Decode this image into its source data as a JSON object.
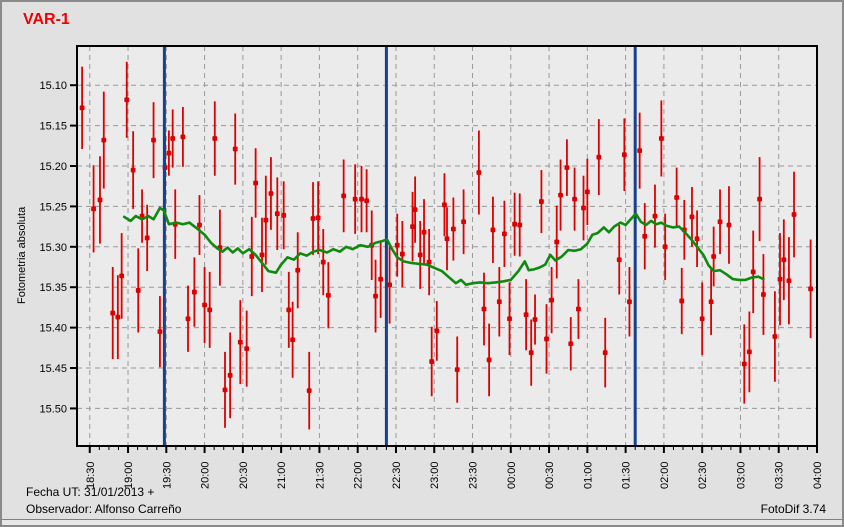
{
  "window_title": "VAR-1",
  "status": {
    "fecha": "Fecha UT: 31/01/2013 +",
    "observador": "Observador: Alfonso Carreño",
    "version": "FotoDif 3.74"
  },
  "chart_data": {
    "type": "scatter",
    "title": "VAR-1",
    "xlabel": "",
    "ylabel": "Fotometria absoluta",
    "y_inverted": true,
    "ylim": [
      15.0515,
      15.5465
    ],
    "y_ticks": [
      "15.10",
      "15.15",
      "15.20",
      "15.25",
      "15.30",
      "15.35",
      "15.40",
      "15.45",
      "15.50"
    ],
    "y_tick_values": [
      15.1,
      15.15,
      15.2,
      15.25,
      15.3,
      15.35,
      15.4,
      15.45,
      15.5
    ],
    "x_ticks": [
      "18:30",
      "19:00",
      "19:30",
      "20:00",
      "20:30",
      "21:00",
      "21:30",
      "22:00",
      "22:30",
      "23:00",
      "23:30",
      "00:00",
      "00:30",
      "01:00",
      "01:30",
      "02:00",
      "02:30",
      "03:00",
      "03:30",
      "04:00"
    ],
    "x_tick_minutes": [
      0,
      30,
      60,
      90,
      120,
      150,
      180,
      210,
      240,
      270,
      300,
      330,
      360,
      390,
      420,
      450,
      480,
      510,
      540,
      570
    ],
    "x_range_minutes": [
      -10,
      570
    ],
    "minor_tick_step_minutes": 7.5,
    "grid": "dashed",
    "legend": "none",
    "vertical_markers_minutes": [
      58.5,
      232.5,
      427.5
    ],
    "vertical_marker_times": [
      "19:29",
      "22:23",
      "01:38"
    ],
    "colors": {
      "points": "#dd0000",
      "smoothed_line": "#0f8a0f",
      "vertical_marker": "#16418e",
      "grid": "#999999",
      "axis": "#000000",
      "plot_bg": "#ebebeb",
      "window_bg": "#e1e1e1",
      "title": "#f00000",
      "text": "#000000"
    },
    "series": [
      {
        "name": "observations",
        "style": "points_with_errorbars",
        "format": "[minutes_after_18:30, magnitude, error]",
        "points": [
          [
            -6,
            15.128,
            0.051
          ],
          [
            3,
            15.253,
            0.054
          ],
          [
            8,
            15.242,
            0.054
          ],
          [
            11,
            15.168,
            0.06
          ],
          [
            18,
            15.382,
            0.057
          ],
          [
            22,
            15.387,
            0.052
          ],
          [
            25,
            15.336,
            0.053
          ],
          [
            29,
            15.118,
            0.047
          ],
          [
            34,
            15.205,
            0.048
          ],
          [
            38,
            15.354,
            0.052
          ],
          [
            41,
            15.262,
            0.033
          ],
          [
            45,
            15.289,
            0.041
          ],
          [
            50,
            15.168,
            0.047
          ],
          [
            55,
            15.405,
            0.044
          ],
          [
            59,
            15.202,
            0.041
          ],
          [
            62,
            15.184,
            0.028
          ],
          [
            65,
            15.166,
            0.036
          ],
          [
            67,
            15.272,
            0.043
          ],
          [
            73,
            15.164,
            0.037
          ],
          [
            77,
            15.389,
            0.041
          ],
          [
            82,
            15.356,
            0.043
          ],
          [
            86,
            15.273,
            0.037
          ],
          [
            90,
            15.372,
            0.047
          ],
          [
            94,
            15.378,
            0.047
          ],
          [
            98,
            15.166,
            0.046
          ],
          [
            102,
            15.301,
            0.047
          ],
          [
            106,
            15.477,
            0.047
          ],
          [
            110,
            15.459,
            0.053
          ],
          [
            114,
            15.179,
            0.044
          ],
          [
            118,
            15.418,
            0.052
          ],
          [
            123,
            15.426,
            0.047
          ],
          [
            127,
            15.312,
            0.049
          ],
          [
            130,
            15.221,
            0.043
          ],
          [
            135,
            15.31,
            0.046
          ],
          [
            138,
            15.267,
            0.055
          ],
          [
            142,
            15.234,
            0.045
          ],
          [
            147,
            15.259,
            0.045
          ],
          [
            152,
            15.261,
            0.042
          ],
          [
            156,
            15.378,
            0.047
          ],
          [
            159,
            15.415,
            0.047
          ],
          [
            163,
            15.329,
            0.047
          ],
          [
            172,
            15.478,
            0.048
          ],
          [
            175,
            15.265,
            0.045
          ],
          [
            179,
            15.264,
            0.045
          ],
          [
            183,
            15.319,
            0.041
          ],
          [
            187,
            15.36,
            0.041
          ],
          [
            199,
            15.237,
            0.045
          ],
          [
            208,
            15.241,
            0.043
          ],
          [
            213,
            15.241,
            0.041
          ],
          [
            217,
            15.243,
            0.039
          ],
          [
            221,
            15.298,
            0.043
          ],
          [
            224,
            15.361,
            0.045
          ],
          [
            228,
            15.34,
            0.048
          ],
          [
            235,
            15.347,
            0.048
          ],
          [
            241,
            15.298,
            0.039
          ],
          [
            245,
            15.309,
            0.041
          ],
          [
            253,
            15.275,
            0.043
          ],
          [
            255,
            15.254,
            0.041
          ],
          [
            259,
            15.31,
            0.042
          ],
          [
            262,
            15.282,
            0.041
          ],
          [
            266,
            15.319,
            0.041
          ],
          [
            268,
            15.442,
            0.043
          ],
          [
            272,
            15.404,
            0.037
          ],
          [
            278,
            15.248,
            0.039
          ],
          [
            280,
            15.29,
            0.039
          ],
          [
            285,
            15.278,
            0.039
          ],
          [
            288,
            15.452,
            0.041
          ],
          [
            293,
            15.269,
            0.04
          ],
          [
            305,
            15.208,
            0.052
          ],
          [
            309,
            15.377,
            0.045
          ],
          [
            313,
            15.44,
            0.045
          ],
          [
            316,
            15.279,
            0.041
          ],
          [
            321,
            15.368,
            0.043
          ],
          [
            325,
            15.284,
            0.041
          ],
          [
            329,
            15.389,
            0.045
          ],
          [
            333,
            15.272,
            0.039
          ],
          [
            337,
            15.273,
            0.039
          ],
          [
            342,
            15.384,
            0.044
          ],
          [
            346,
            15.431,
            0.041
          ],
          [
            349,
            15.39,
            0.031
          ],
          [
            354,
            15.244,
            0.039
          ],
          [
            358,
            15.414,
            0.043
          ],
          [
            362,
            15.366,
            0.041
          ],
          [
            366,
            15.294,
            0.045
          ],
          [
            369,
            15.236,
            0.044
          ],
          [
            374,
            15.202,
            0.035
          ],
          [
            377,
            15.42,
            0.033
          ],
          [
            380,
            15.241,
            0.039
          ],
          [
            383,
            15.377,
            0.037
          ],
          [
            387,
            15.252,
            0.04
          ],
          [
            390,
            15.232,
            0.041
          ],
          [
            399,
            15.189,
            0.047
          ],
          [
            404,
            15.431,
            0.043
          ],
          [
            415,
            15.316,
            0.043
          ],
          [
            419,
            15.186,
            0.045
          ],
          [
            423,
            15.368,
            0.043
          ],
          [
            431,
            15.181,
            0.047
          ],
          [
            435,
            15.287,
            0.041
          ],
          [
            443,
            15.262,
            0.039
          ],
          [
            448,
            15.166,
            0.047
          ],
          [
            451,
            15.3,
            0.041
          ],
          [
            460,
            15.239,
            0.037
          ],
          [
            464,
            15.367,
            0.041
          ],
          [
            466,
            15.279,
            0.037
          ],
          [
            472,
            15.263,
            0.037
          ],
          [
            476,
            15.29,
            0.035
          ],
          [
            480,
            15.389,
            0.045
          ],
          [
            487,
            15.368,
            0.041
          ],
          [
            489,
            15.312,
            0.037
          ],
          [
            494,
            15.269,
            0.04
          ],
          [
            501,
            15.273,
            0.048
          ],
          [
            513,
            15.445,
            0.049
          ],
          [
            517,
            15.43,
            0.05
          ],
          [
            520,
            15.331,
            0.051
          ],
          [
            525,
            15.241,
            0.052
          ],
          [
            528,
            15.359,
            0.05
          ],
          [
            537,
            15.411,
            0.056
          ],
          [
            541,
            15.34,
            0.057
          ],
          [
            544,
            15.316,
            0.05
          ],
          [
            548,
            15.342,
            0.054
          ],
          [
            552,
            15.26,
            0.053
          ],
          [
            565,
            15.352,
            0.061
          ]
        ]
      },
      {
        "name": "smoothed",
        "style": "line",
        "format": "[minutes_after_18:30, magnitude]",
        "points": [
          [
            27,
            15.263
          ],
          [
            32,
            15.268
          ],
          [
            36,
            15.262
          ],
          [
            41,
            15.266
          ],
          [
            46,
            15.262
          ],
          [
            50,
            15.266
          ],
          [
            55,
            15.252
          ],
          [
            58,
            15.255
          ],
          [
            62,
            15.272
          ],
          [
            68,
            15.27
          ],
          [
            73,
            15.272
          ],
          [
            78,
            15.27
          ],
          [
            83,
            15.276
          ],
          [
            90,
            15.285
          ],
          [
            95,
            15.295
          ],
          [
            100,
            15.302
          ],
          [
            104,
            15.306
          ],
          [
            108,
            15.301
          ],
          [
            112,
            15.307
          ],
          [
            116,
            15.302
          ],
          [
            120,
            15.308
          ],
          [
            125,
            15.303
          ],
          [
            130,
            15.31
          ],
          [
            136,
            15.322
          ],
          [
            140,
            15.33
          ],
          [
            146,
            15.332
          ],
          [
            150,
            15.322
          ],
          [
            155,
            15.313
          ],
          [
            160,
            15.316
          ],
          [
            165,
            15.308
          ],
          [
            170,
            15.311
          ],
          [
            175,
            15.306
          ],
          [
            180,
            15.304
          ],
          [
            186,
            15.307
          ],
          [
            191,
            15.303
          ],
          [
            196,
            15.306
          ],
          [
            201,
            15.3
          ],
          [
            206,
            15.303
          ],
          [
            212,
            15.298
          ],
          [
            218,
            15.3
          ],
          [
            224,
            15.295
          ],
          [
            229,
            15.293
          ],
          [
            233,
            15.291
          ],
          [
            237,
            15.303
          ],
          [
            241,
            15.313
          ],
          [
            246,
            15.318
          ],
          [
            252,
            15.32
          ],
          [
            258,
            15.321
          ],
          [
            264,
            15.322
          ],
          [
            270,
            15.326
          ],
          [
            276,
            15.33
          ],
          [
            281,
            15.337
          ],
          [
            287,
            15.345
          ],
          [
            291,
            15.341
          ],
          [
            295,
            15.347
          ],
          [
            300,
            15.345
          ],
          [
            306,
            15.344
          ],
          [
            312,
            15.345
          ],
          [
            318,
            15.344
          ],
          [
            323,
            15.343
          ],
          [
            330,
            15.341
          ],
          [
            336,
            15.33
          ],
          [
            341,
            15.318
          ],
          [
            344,
            15.329
          ],
          [
            348,
            15.328
          ],
          [
            352,
            15.326
          ],
          [
            357,
            15.322
          ],
          [
            361,
            15.31
          ],
          [
            365,
            15.317
          ],
          [
            370,
            15.312
          ],
          [
            375,
            15.304
          ],
          [
            380,
            15.305
          ],
          [
            385,
            15.303
          ],
          [
            390,
            15.296
          ],
          [
            394,
            15.285
          ],
          [
            398,
            15.283
          ],
          [
            403,
            15.276
          ],
          [
            407,
            15.282
          ],
          [
            411,
            15.275
          ],
          [
            416,
            15.27
          ],
          [
            420,
            15.273
          ],
          [
            424,
            15.266
          ],
          [
            428,
            15.259
          ],
          [
            432,
            15.269
          ],
          [
            436,
            15.273
          ],
          [
            440,
            15.268
          ],
          [
            444,
            15.272
          ],
          [
            448,
            15.27
          ],
          [
            452,
            15.274
          ],
          [
            457,
            15.276
          ],
          [
            462,
            15.275
          ],
          [
            467,
            15.283
          ],
          [
            472,
            15.292
          ],
          [
            477,
            15.302
          ],
          [
            481,
            15.31
          ],
          [
            485,
            15.323
          ],
          [
            489,
            15.33
          ],
          [
            494,
            15.329
          ],
          [
            499,
            15.334
          ],
          [
            504,
            15.34
          ],
          [
            509,
            15.341
          ],
          [
            514,
            15.341
          ],
          [
            519,
            15.338
          ],
          [
            524,
            15.337
          ],
          [
            528,
            15.34
          ]
        ]
      }
    ]
  }
}
